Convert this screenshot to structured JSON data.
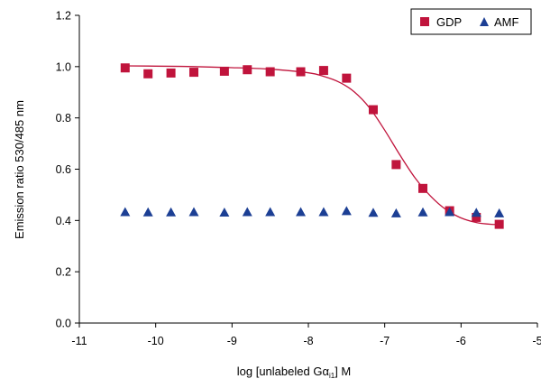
{
  "chart_data": {
    "type": "scatter",
    "title": "",
    "xlabel_parts": {
      "before": "log [unlabeled G",
      "alpha": "α",
      "sub": "i1",
      "after": "] M"
    },
    "ylabel": "Emission ratio 530/485 nm",
    "xlim": [
      -11,
      -5
    ],
    "ylim": [
      0,
      1.2
    ],
    "x_ticks": [
      -11,
      -10,
      -9,
      -8,
      -7,
      -6,
      -5
    ],
    "x_tick_labels": [
      "-11",
      "-10",
      "-9",
      "-8",
      "-7",
      "-6",
      "-5"
    ],
    "y_ticks": [
      0,
      0.2,
      0.4,
      0.6,
      0.8,
      1.0,
      1.2
    ],
    "y_tick_labels": [
      "0.0",
      "0.2",
      "0.4",
      "0.6",
      "0.8",
      "1.0",
      "1.2"
    ],
    "grid": false,
    "legend_position": "top-right",
    "series": [
      {
        "name": "GDP",
        "marker": "square",
        "color": "#c0143c",
        "x": [
          -10.4,
          -10.1,
          -9.8,
          -9.5,
          -9.1,
          -8.8,
          -8.5,
          -8.1,
          -7.8,
          -7.5,
          -7.15,
          -6.85,
          -6.5,
          -6.15,
          -5.8,
          -5.5
        ],
        "y": [
          0.995,
          0.972,
          0.975,
          0.978,
          0.982,
          0.988,
          0.98,
          0.98,
          0.985,
          0.955,
          0.832,
          0.618,
          0.525,
          0.438,
          0.412,
          0.385
        ]
      },
      {
        "name": "AMF",
        "marker": "triangle",
        "color": "#1c3f94",
        "x": [
          -10.4,
          -10.1,
          -9.8,
          -9.5,
          -9.1,
          -8.8,
          -8.5,
          -8.1,
          -7.8,
          -7.5,
          -7.15,
          -6.85,
          -6.5,
          -6.15,
          -5.8,
          -5.5
        ],
        "y": [
          0.433,
          0.432,
          0.432,
          0.433,
          0.431,
          0.433,
          0.433,
          0.433,
          0.433,
          0.437,
          0.43,
          0.428,
          0.432,
          0.433,
          0.43,
          0.428
        ]
      }
    ],
    "fit_curve": {
      "series": "GDP",
      "color": "#c0143c",
      "x": [
        -10.4,
        -10.0,
        -9.5,
        -9.0,
        -8.5,
        -8.0,
        -7.8,
        -7.6,
        -7.4,
        -7.2,
        -7.0,
        -6.8,
        -6.6,
        -6.4,
        -6.2,
        -6.0,
        -5.8,
        -5.6,
        -5.5
      ],
      "y": [
        1.003,
        1.002,
        1.0,
        0.996,
        0.99,
        0.976,
        0.962,
        0.94,
        0.902,
        0.84,
        0.752,
        0.655,
        0.565,
        0.495,
        0.443,
        0.41,
        0.392,
        0.385,
        0.385
      ]
    }
  }
}
